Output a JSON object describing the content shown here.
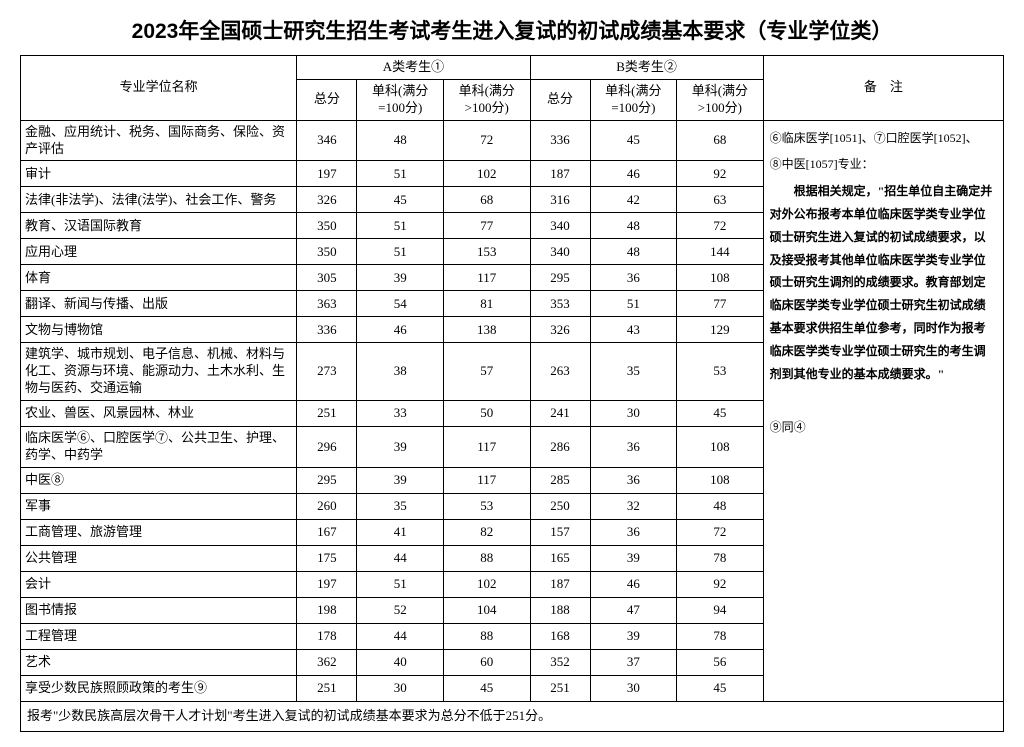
{
  "title": "2023年全国硕士研究生招生考试考生进入复试的初试成绩基本要求（专业学位类）",
  "headers": {
    "name": "专业学位名称",
    "catA": "A类考生①",
    "catB": "B类考生②",
    "notes": "备　注",
    "total": "总分",
    "sub100": "单科(满分=100分)",
    "subOver100": "单科(满分>100分)"
  },
  "rows": [
    {
      "name": "金融、应用统计、税务、国际商务、保险、资产评估",
      "a": [
        346,
        48,
        72
      ],
      "b": [
        336,
        45,
        68
      ]
    },
    {
      "name": "审计",
      "a": [
        197,
        51,
        102
      ],
      "b": [
        187,
        46,
        92
      ]
    },
    {
      "name": "法律(非法学)、法律(法学)、社会工作、警务",
      "a": [
        326,
        45,
        68
      ],
      "b": [
        316,
        42,
        63
      ]
    },
    {
      "name": "教育、汉语国际教育",
      "a": [
        350,
        51,
        77
      ],
      "b": [
        340,
        48,
        72
      ]
    },
    {
      "name": "应用心理",
      "a": [
        350,
        51,
        153
      ],
      "b": [
        340,
        48,
        144
      ]
    },
    {
      "name": "体育",
      "a": [
        305,
        39,
        117
      ],
      "b": [
        295,
        36,
        108
      ]
    },
    {
      "name": "翻译、新闻与传播、出版",
      "a": [
        363,
        54,
        81
      ],
      "b": [
        353,
        51,
        77
      ]
    },
    {
      "name": "文物与博物馆",
      "a": [
        336,
        46,
        138
      ],
      "b": [
        326,
        43,
        129
      ]
    },
    {
      "name": "建筑学、城市规划、电子信息、机械、材料与化工、资源与环境、能源动力、土木水利、生物与医药、交通运输",
      "a": [
        273,
        38,
        57
      ],
      "b": [
        263,
        35,
        53
      ]
    },
    {
      "name": "农业、兽医、风景园林、林业",
      "a": [
        251,
        33,
        50
      ],
      "b": [
        241,
        30,
        45
      ]
    },
    {
      "name": "临床医学⑥、口腔医学⑦、公共卫生、护理、药学、中药学",
      "a": [
        296,
        39,
        117
      ],
      "b": [
        286,
        36,
        108
      ]
    },
    {
      "name": "中医⑧",
      "a": [
        295,
        39,
        117
      ],
      "b": [
        285,
        36,
        108
      ]
    },
    {
      "name": "军事",
      "a": [
        260,
        35,
        53
      ],
      "b": [
        250,
        32,
        48
      ]
    },
    {
      "name": "工商管理、旅游管理",
      "a": [
        167,
        41,
        82
      ],
      "b": [
        157,
        36,
        72
      ]
    },
    {
      "name": "公共管理",
      "a": [
        175,
        44,
        88
      ],
      "b": [
        165,
        39,
        78
      ]
    },
    {
      "name": "会计",
      "a": [
        197,
        51,
        102
      ],
      "b": [
        187,
        46,
        92
      ]
    },
    {
      "name": "图书情报",
      "a": [
        198,
        52,
        104
      ],
      "b": [
        188,
        47,
        94
      ]
    },
    {
      "name": "工程管理",
      "a": [
        178,
        44,
        88
      ],
      "b": [
        168,
        39,
        78
      ]
    },
    {
      "name": "艺术",
      "a": [
        362,
        40,
        60
      ],
      "b": [
        352,
        37,
        56
      ]
    },
    {
      "name": "享受少数民族照顾政策的考生⑨",
      "a": [
        251,
        30,
        45
      ],
      "b": [
        251,
        30,
        45
      ]
    }
  ],
  "notes": {
    "line1": "⑥临床医学[1051]、⑦口腔医学[1052]、",
    "line2": "⑧中医[1057]专业：",
    "body": "　　根据相关规定，\"招生单位自主确定并对外公布报考本单位临床医学类专业学位硕士研究生进入复试的初试成绩要求，以及接受报考其他单位临床医学类专业学位硕士研究生调剂的成绩要求。教育部划定临床医学类专业学位硕士研究生初试成绩基本要求供招生单位参考，同时作为报考临床医学类专业学位硕士研究生的考生调剂到其他专业的基本成绩要求。\"",
    "line4": "⑨同④"
  },
  "footnote": "报考\"少数民族高层次骨干人才计划\"考生进入复试的初试成绩基本要求为总分不低于251分。",
  "style": {
    "border_color": "#000000",
    "background_color": "#ffffff",
    "text_color": "#000000",
    "title_fontsize": 21,
    "cell_fontsize": 13,
    "notes_fontsize": 12
  }
}
